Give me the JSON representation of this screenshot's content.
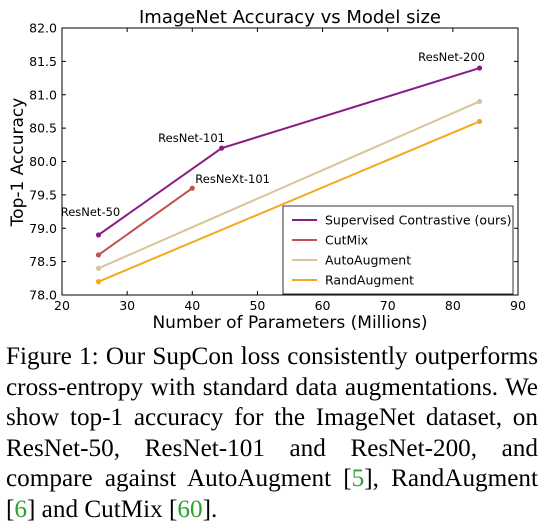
{
  "chart_data": {
    "type": "line",
    "title": "ImageNet Accuracy vs Model size",
    "xlabel": "Number of Parameters (Millions)",
    "ylabel": "Top-1 Accuracy",
    "xlim": [
      20,
      90
    ],
    "ylim": [
      78.0,
      82.0
    ],
    "xticks": [
      20,
      30,
      40,
      50,
      60,
      70,
      80,
      90
    ],
    "yticks": [
      78.0,
      78.5,
      79.0,
      79.5,
      80.0,
      80.5,
      81.0,
      81.5,
      82.0
    ],
    "grid": false,
    "legend_position": "lower-right",
    "series": [
      {
        "name": "Supervised Contrastive (ours)",
        "color": "#8b1a89",
        "x": [
          25.6,
          44.5,
          84.1
        ],
        "y": [
          78.9,
          80.2,
          81.4
        ]
      },
      {
        "name": "CutMix",
        "color": "#c1504f",
        "x": [
          25.6,
          40.0
        ],
        "y": [
          78.6,
          79.6
        ]
      },
      {
        "name": "AutoAugment",
        "color": "#d8c39a",
        "x": [
          25.6,
          84.1
        ],
        "y": [
          78.4,
          80.9
        ]
      },
      {
        "name": "RandAugment",
        "color": "#f5a81a",
        "x": [
          25.6,
          84.1
        ],
        "y": [
          78.2,
          80.6
        ]
      }
    ],
    "annotations": [
      {
        "text": "ResNet-50",
        "x": 25.6,
        "y": 78.9
      },
      {
        "text": "ResNet-101",
        "x": 44.5,
        "y": 80.2
      },
      {
        "text": "ResNeXt-101",
        "x": 40.0,
        "y": 79.6
      },
      {
        "text": "ResNet-200",
        "x": 84.1,
        "y": 81.4
      }
    ]
  },
  "caption": {
    "prefix": "Figure 1: Our SupCon loss consistently outperforms cross-entropy with standard data augmentations. We show top-1 accuracy for the ImageNet dataset, on ResNet-50, ResNet-101 and ResNet-200, and compare against AutoAugment [",
    "ref1": "5",
    "mid1": "], RandAugment [",
    "ref2": "6",
    "mid2": "] and CutMix [",
    "ref3": "60",
    "suffix": "]."
  }
}
